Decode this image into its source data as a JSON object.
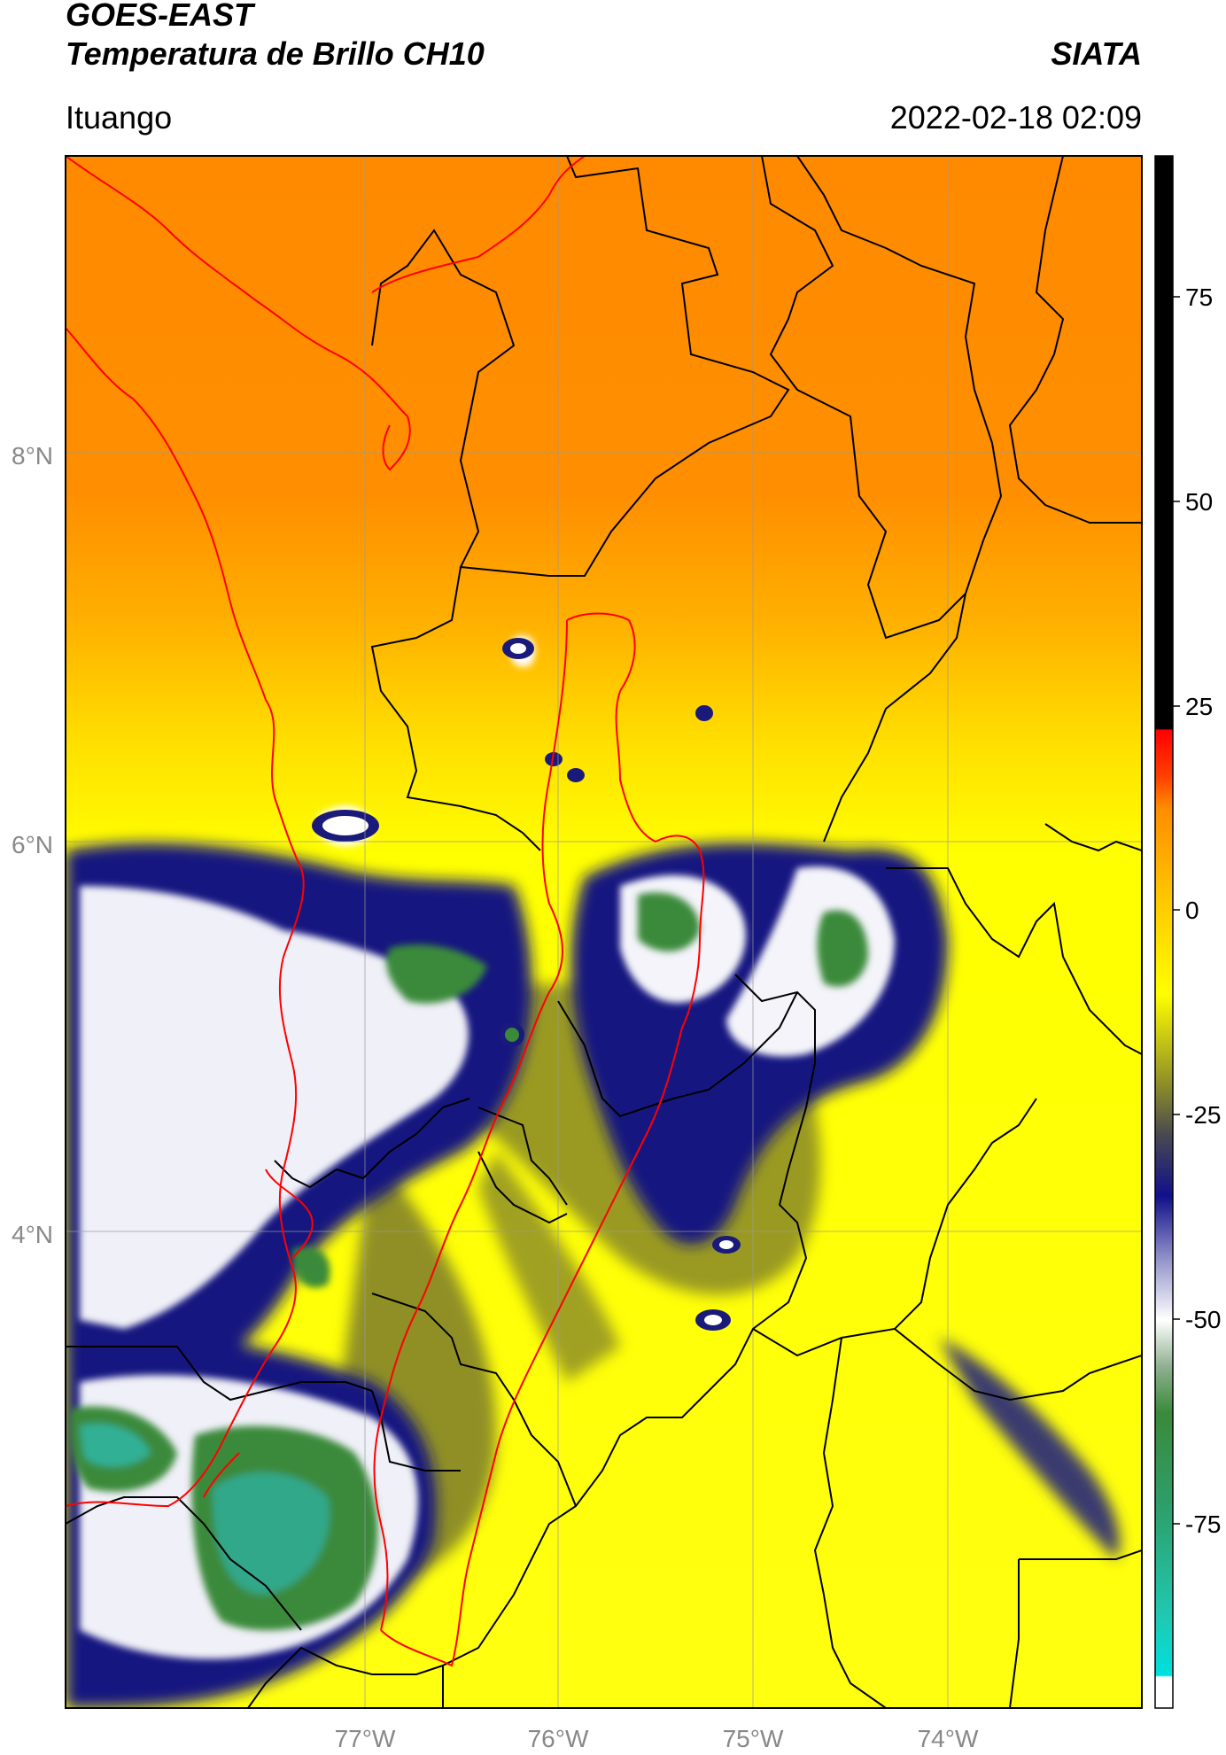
{
  "header": {
    "satellite": "GOES-EAST",
    "product": "Temperatura de Brillo CH10",
    "brand": "SIATA",
    "region": "Ituango",
    "timestamp": "2022-02-18 02:09"
  },
  "axes": {
    "lat_labels": [
      "8°N",
      "6°N",
      "4°N"
    ],
    "lon_labels": [
      "77°W",
      "76°W",
      "75°W",
      "74°W"
    ]
  },
  "colorbar": {
    "ticks": [
      "75",
      "50",
      "25",
      "0",
      "-25",
      "-50",
      "-75"
    ],
    "colors": {
      "black": "#000000",
      "red": "#ff0000",
      "orange": "#ff8c00",
      "yellow": "#ffff00",
      "olive": "#8a8a2a",
      "navy": "#10108a",
      "white": "#ffffff",
      "green": "#3a8a3a",
      "teal": "#30c0a0",
      "cyan": "#00e0e0"
    }
  },
  "map": {
    "country_border_color": "#ff0000",
    "admin_border_color": "#000000",
    "grid_color": "#999999"
  }
}
